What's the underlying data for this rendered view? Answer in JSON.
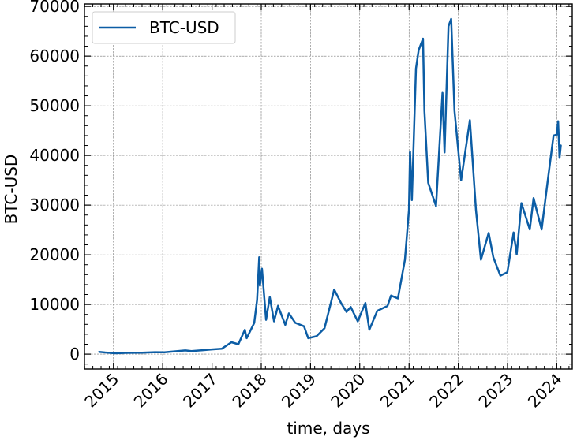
{
  "chart_data": {
    "type": "line",
    "title": "",
    "xlabel": "time, days",
    "ylabel": "BTC-USD",
    "xlim": [
      "2014-05-31",
      "2024-04-25"
    ],
    "ylim": [
      -3000,
      70500
    ],
    "xticks": [
      {
        "label": "2015",
        "date": "2015-01-01"
      },
      {
        "label": "2016",
        "date": "2016-01-01"
      },
      {
        "label": "2017",
        "date": "2017-01-01"
      },
      {
        "label": "2018",
        "date": "2018-01-01"
      },
      {
        "label": "2019",
        "date": "2019-01-01"
      },
      {
        "label": "2020",
        "date": "2020-01-01"
      },
      {
        "label": "2021",
        "date": "2021-01-01"
      },
      {
        "label": "2022",
        "date": "2022-01-01"
      },
      {
        "label": "2023",
        "date": "2023-01-01"
      },
      {
        "label": "2024",
        "date": "2024-01-01"
      }
    ],
    "yticks": [
      0,
      10000,
      20000,
      30000,
      40000,
      50000,
      60000,
      70000
    ],
    "grid": true,
    "legend": "upper left",
    "series": [
      {
        "name": "BTC-USD",
        "color": "#0C5DA5",
        "points": [
          [
            "2014-09-17",
            457
          ],
          [
            "2014-11-01",
            330
          ],
          [
            "2015-01-14",
            180
          ],
          [
            "2015-04-01",
            250
          ],
          [
            "2015-08-01",
            280
          ],
          [
            "2015-11-05",
            400
          ],
          [
            "2016-01-15",
            380
          ],
          [
            "2016-06-17",
            750
          ],
          [
            "2016-08-01",
            600
          ],
          [
            "2016-12-31",
            960
          ],
          [
            "2017-03-15",
            1100
          ],
          [
            "2017-05-25",
            2400
          ],
          [
            "2017-07-15",
            2000
          ],
          [
            "2017-09-01",
            4900
          ],
          [
            "2017-09-15",
            3200
          ],
          [
            "2017-11-10",
            6300
          ],
          [
            "2017-12-01",
            10900
          ],
          [
            "2017-12-17",
            19500
          ],
          [
            "2017-12-22",
            13800
          ],
          [
            "2018-01-06",
            17200
          ],
          [
            "2018-02-06",
            6900
          ],
          [
            "2018-03-05",
            11500
          ],
          [
            "2018-04-06",
            6600
          ],
          [
            "2018-05-05",
            9700
          ],
          [
            "2018-06-28",
            5900
          ],
          [
            "2018-07-25",
            8200
          ],
          [
            "2018-09-10",
            6300
          ],
          [
            "2018-11-14",
            5600
          ],
          [
            "2018-12-15",
            3200
          ],
          [
            "2019-02-15",
            3600
          ],
          [
            "2019-04-15",
            5200
          ],
          [
            "2019-06-26",
            13000
          ],
          [
            "2019-08-15",
            10300
          ],
          [
            "2019-09-25",
            8500
          ],
          [
            "2019-10-26",
            9500
          ],
          [
            "2019-12-17",
            6600
          ],
          [
            "2020-02-12",
            10300
          ],
          [
            "2020-03-12",
            4900
          ],
          [
            "2020-05-10",
            8700
          ],
          [
            "2020-07-25",
            9700
          ],
          [
            "2020-08-20",
            11800
          ],
          [
            "2020-10-10",
            11200
          ],
          [
            "2020-12-01",
            19000
          ],
          [
            "2020-12-31",
            29000
          ],
          [
            "2021-01-08",
            40800
          ],
          [
            "2021-01-22",
            31000
          ],
          [
            "2021-02-21",
            57500
          ],
          [
            "2021-03-13",
            61200
          ],
          [
            "2021-04-14",
            63500
          ],
          [
            "2021-04-25",
            49000
          ],
          [
            "2021-05-23",
            34500
          ],
          [
            "2021-07-20",
            29800
          ],
          [
            "2021-09-06",
            52600
          ],
          [
            "2021-09-21",
            40600
          ],
          [
            "2021-10-20",
            66000
          ],
          [
            "2021-11-09",
            67500
          ],
          [
            "2021-12-04",
            49000
          ],
          [
            "2022-01-22",
            35000
          ],
          [
            "2022-03-28",
            47100
          ],
          [
            "2022-05-12",
            29000
          ],
          [
            "2022-06-18",
            19000
          ],
          [
            "2022-08-14",
            24400
          ],
          [
            "2022-09-18",
            19500
          ],
          [
            "2022-11-09",
            15800
          ],
          [
            "2022-12-31",
            16500
          ],
          [
            "2023-02-15",
            24500
          ],
          [
            "2023-03-10",
            20100
          ],
          [
            "2023-04-14",
            30400
          ],
          [
            "2023-06-15",
            25100
          ],
          [
            "2023-07-13",
            31400
          ],
          [
            "2023-09-11",
            25100
          ],
          [
            "2023-10-24",
            34500
          ],
          [
            "2023-12-08",
            44000
          ],
          [
            "2024-01-01",
            44200
          ],
          [
            "2024-01-11",
            46900
          ],
          [
            "2024-01-22",
            39500
          ],
          [
            "2024-01-31",
            42000
          ]
        ]
      }
    ]
  }
}
